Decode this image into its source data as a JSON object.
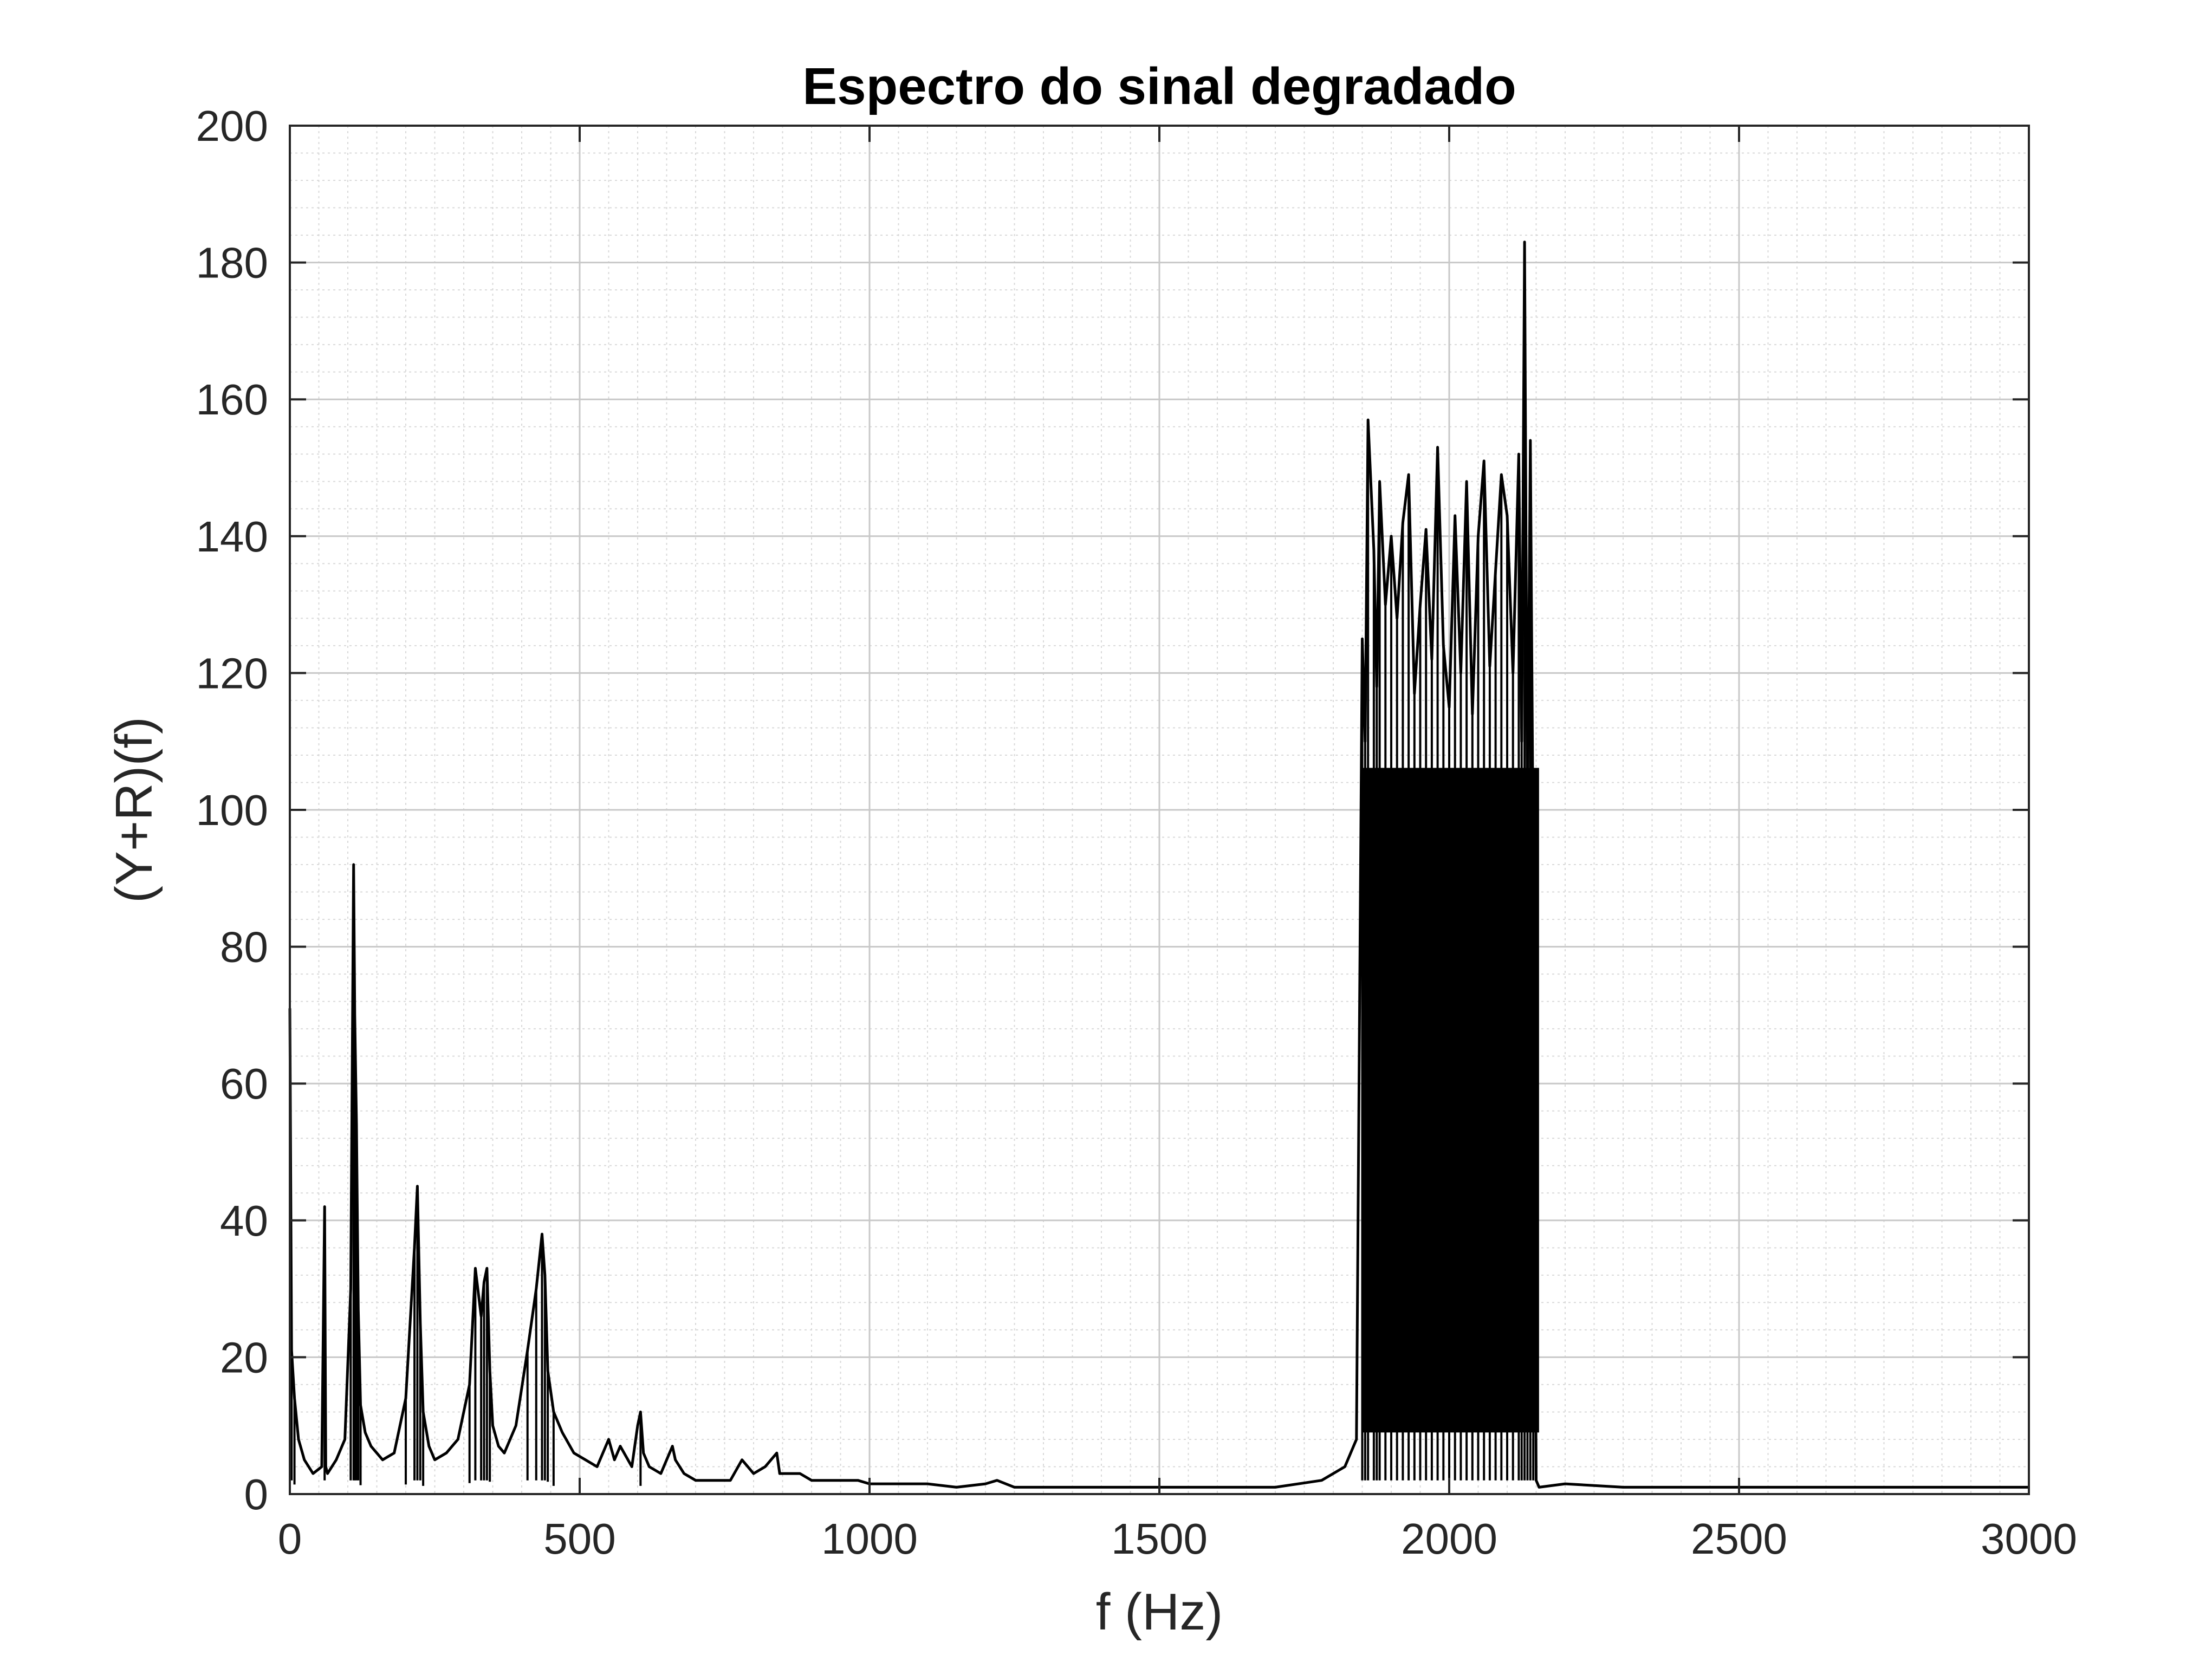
{
  "chart_data": {
    "type": "line",
    "title": "Espectro do sinal degradado",
    "xlabel": "f (Hz)",
    "ylabel": "(Y+R)(f)",
    "xlim": [
      0,
      3000
    ],
    "ylim": [
      0,
      200
    ],
    "xticks": [
      0,
      500,
      1000,
      1500,
      2000,
      2500,
      3000
    ],
    "xtick_labels": [
      "0",
      "500",
      "1000",
      "1500",
      "2000",
      "2500",
      "3000"
    ],
    "yticks": [
      0,
      20,
      40,
      60,
      80,
      100,
      120,
      140,
      160,
      180,
      200
    ],
    "ytick_labels": [
      "0",
      "20",
      "40",
      "60",
      "80",
      "100",
      "120",
      "140",
      "160",
      "180",
      "200"
    ],
    "grid": "major and minor",
    "line_color": "#000000",
    "series": [
      {
        "x": [
          0,
          3,
          8,
          15,
          25,
          40,
          55,
          60,
          62,
          65,
          80,
          95,
          105,
          110,
          112,
          115,
          118,
          122,
          130,
          140,
          160,
          180,
          200,
          215,
          220,
          225,
          230,
          240,
          250,
          270,
          290,
          310,
          320,
          330,
          335,
          340,
          345,
          350,
          360,
          370,
          390,
          410,
          425,
          435,
          440,
          445,
          455,
          470,
          490,
          510,
          530,
          550,
          560,
          570,
          590,
          600,
          605,
          610,
          620,
          640,
          660,
          665,
          680,
          700,
          730,
          760,
          780,
          800,
          820,
          840,
          845,
          860,
          880,
          900,
          940,
          980,
          1000,
          1050,
          1100,
          1150,
          1200,
          1220,
          1250,
          1300,
          1400,
          1500,
          1600,
          1700,
          1780,
          1820,
          1840,
          1850,
          1855,
          1860,
          1870,
          1875,
          1880,
          1890,
          1900,
          1910,
          1920,
          1930,
          1940,
          1950,
          1960,
          1970,
          1980,
          1990,
          2000,
          2010,
          2020,
          2030,
          2040,
          2050,
          2060,
          2070,
          2080,
          2090,
          2100,
          2110,
          2120,
          2125,
          2130,
          2135,
          2140,
          2145,
          2150,
          2155,
          2200,
          2300,
          2400,
          2500,
          2600,
          2700,
          2800,
          2900,
          3000
        ],
        "y": [
          71,
          21,
          14,
          8,
          5,
          3,
          4,
          42,
          4,
          3,
          5,
          8,
          30,
          92,
          70,
          54,
          27,
          13,
          9,
          7,
          5,
          6,
          14,
          36,
          45,
          25,
          12,
          7,
          5,
          6,
          8,
          16,
          33,
          26,
          31,
          33,
          18,
          10,
          7,
          6,
          10,
          21,
          30,
          38,
          32,
          18,
          12,
          9,
          6,
          5,
          4,
          8,
          5,
          7,
          4,
          10,
          12,
          6,
          4,
          3,
          7,
          5,
          3,
          2,
          2,
          2,
          5,
          3,
          4,
          6,
          3,
          3,
          3,
          2,
          2,
          2,
          1.5,
          1.5,
          1.5,
          1,
          1.5,
          2,
          1,
          1,
          1,
          1,
          1,
          1,
          2,
          4,
          8,
          125,
          110,
          157,
          138,
          118,
          148,
          130,
          140,
          128,
          142,
          149,
          117,
          130,
          141,
          122,
          153,
          124,
          115,
          143,
          120,
          148,
          114,
          140,
          151,
          121,
          135,
          149,
          143,
          120,
          152,
          110,
          183,
          98,
          154,
          90,
          2,
          1,
          1.5,
          1,
          1,
          1,
          1,
          1,
          1,
          1,
          1
        ]
      }
    ],
    "annotations": [
      {
        "description": "dense high-amplitude band",
        "x_range": [
          1850,
          2155
        ],
        "y_min_envelope": 3,
        "y_max_envelope": 183
      }
    ]
  }
}
